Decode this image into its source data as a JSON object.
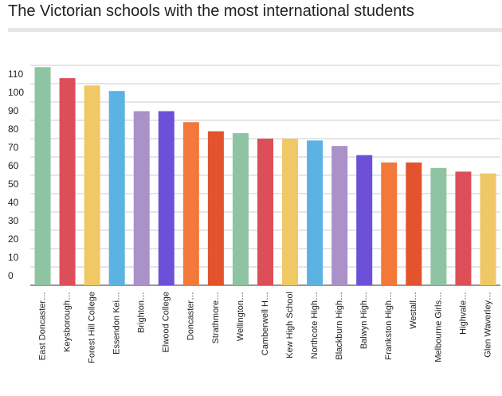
{
  "chart_data": {
    "type": "bar",
    "title": "The Victorian schools with the most international students",
    "categories": [
      "East Doncaster…",
      "Keysborough…",
      "Forest Hill College",
      "Essendon Kei…",
      "Brighton…",
      "Elwood College",
      "Doncaster…",
      "Strathmore…",
      "Wellington…",
      "Camberwell H…",
      "Kew High School",
      "Northcote High…",
      "Blackburn High…",
      "Balwyn High…",
      "Frankston High…",
      "Westall…",
      "Melbourne Girls…",
      "Highvale…",
      "Glen Waverley…"
    ],
    "values": [
      119,
      113,
      109,
      106,
      95,
      95,
      89,
      84,
      83,
      80,
      80,
      79,
      76,
      71,
      67,
      67,
      64,
      62,
      61
    ],
    "colors": [
      "#8fc4a2",
      "#dc4f58",
      "#f0c865",
      "#5cb3e3",
      "#aa91c8",
      "#6d50d8",
      "#f3783a",
      "#e3542e",
      "#8fc4a2",
      "#dc4f58",
      "#f0c865",
      "#5cb3e3",
      "#aa91c8",
      "#6d50d8",
      "#f3783a",
      "#e3542e",
      "#8fc4a2",
      "#dc4f58",
      "#f0c865"
    ],
    "ylim": [
      0,
      120
    ],
    "yticks": [
      0,
      10,
      20,
      30,
      40,
      50,
      60,
      70,
      80,
      90,
      100,
      110
    ],
    "grid": true
  }
}
